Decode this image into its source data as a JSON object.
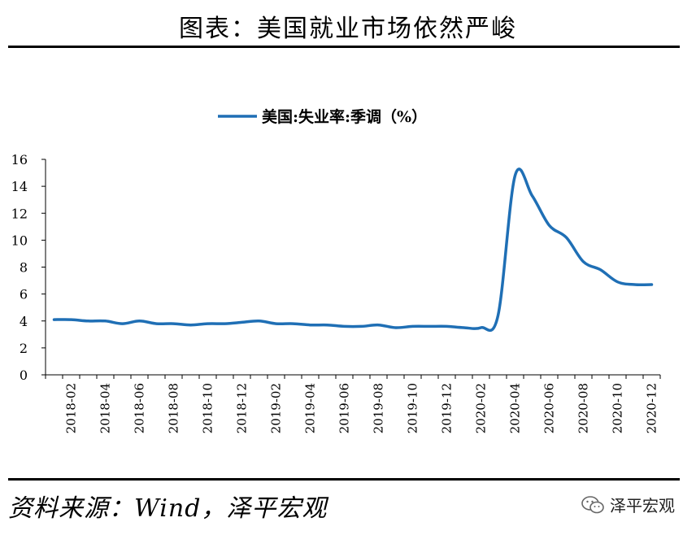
{
  "header": {
    "title": "图表：美国就业市场依然严峻"
  },
  "footer": {
    "source": "资料来源：Wind，泽平宏观",
    "watermark": "泽平宏观",
    "watermark_icon": "wechat-icon"
  },
  "colors": {
    "series": "#1f6fb5",
    "axis": "#000000"
  },
  "chart_data": {
    "type": "line",
    "legend_position": "top-center",
    "grid": false,
    "ylim": [
      0,
      16
    ],
    "yticks": [
      "0",
      "2",
      "4",
      "6",
      "8",
      "10",
      "12",
      "14",
      "16"
    ],
    "xtick_labels": [
      "2018-02",
      "2018-04",
      "2018-06",
      "2018-08",
      "2018-10",
      "2018-12",
      "2019-02",
      "2019-04",
      "2019-06",
      "2019-08",
      "2019-10",
      "2019-12",
      "2020-02",
      "2020-04",
      "2020-06",
      "2020-08",
      "2020-10",
      "2020-12"
    ],
    "x": [
      "2018-01",
      "2018-02",
      "2018-03",
      "2018-04",
      "2018-05",
      "2018-06",
      "2018-07",
      "2018-08",
      "2018-09",
      "2018-10",
      "2018-11",
      "2018-12",
      "2019-01",
      "2019-02",
      "2019-03",
      "2019-04",
      "2019-05",
      "2019-06",
      "2019-07",
      "2019-08",
      "2019-09",
      "2019-10",
      "2019-11",
      "2019-12",
      "2020-01",
      "2020-02",
      "2020-03",
      "2020-04",
      "2020-05",
      "2020-06",
      "2020-07",
      "2020-08",
      "2020-09",
      "2020-10",
      "2020-11",
      "2020-12"
    ],
    "series": [
      {
        "name": "美国:失业率:季调（%）",
        "values": [
          4.1,
          4.1,
          4.0,
          4.0,
          3.8,
          4.0,
          3.8,
          3.8,
          3.7,
          3.8,
          3.8,
          3.9,
          4.0,
          3.8,
          3.8,
          3.7,
          3.7,
          3.6,
          3.6,
          3.7,
          3.5,
          3.6,
          3.6,
          3.6,
          3.5,
          3.5,
          4.4,
          14.8,
          13.3,
          11.1,
          10.2,
          8.4,
          7.8,
          6.9,
          6.7,
          6.7
        ]
      }
    ]
  }
}
